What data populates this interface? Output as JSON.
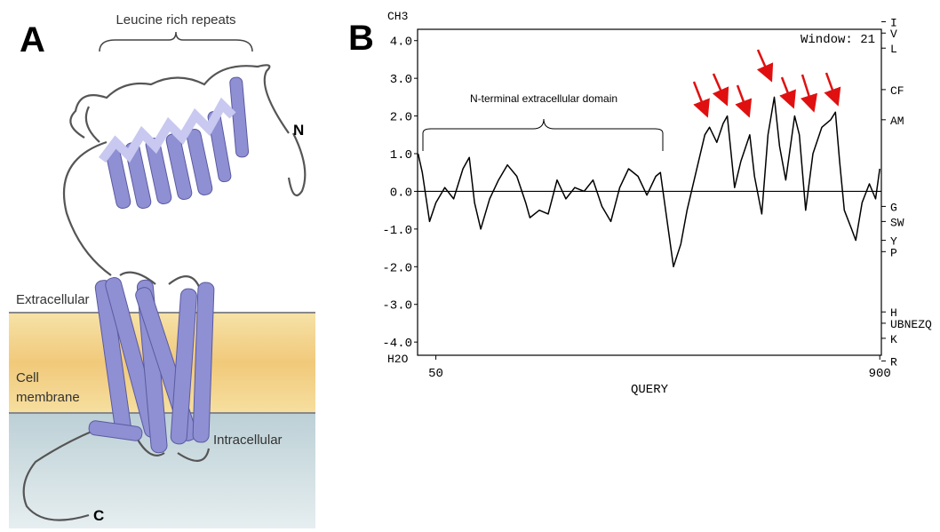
{
  "panel_a": {
    "label": "A",
    "repeats_label": "Leucine rich repeats",
    "n_terminus": "N",
    "c_terminus": "C",
    "extracellular": "Extracellular",
    "membrane": [
      "Cell",
      "membrane"
    ],
    "intracellular": "Intracellular"
  },
  "chart_data": {
    "type": "line",
    "panel_label": "B",
    "x_label": "QUERY",
    "y_top_label": "CH3",
    "y_bottom_label": "H2O",
    "window_label": "Window: 21",
    "domain_label": "N-terminal extracellular domain",
    "x": [
      16,
      24,
      38,
      50,
      67,
      84,
      102,
      114,
      124,
      136,
      153,
      170,
      187,
      205,
      222,
      230,
      248,
      265,
      282,
      299,
      316,
      334,
      351,
      368,
      385,
      402,
      419,
      437,
      454,
      471,
      480,
      488,
      497,
      505,
      519,
      531,
      548,
      565,
      574,
      588,
      600,
      608,
      622,
      634,
      651,
      660,
      674,
      686,
      698,
      708,
      720,
      737,
      746,
      758,
      772,
      789,
      806,
      815,
      823,
      832,
      846,
      854,
      866,
      880,
      892,
      900
    ],
    "series": [
      {
        "color": "#000000",
        "values": [
          1.0,
          0.5,
          -0.8,
          -0.3,
          0.1,
          -0.2,
          0.6,
          0.9,
          -0.3,
          -1.0,
          -0.2,
          0.3,
          0.7,
          0.4,
          -0.3,
          -0.7,
          -0.5,
          -0.6,
          0.3,
          -0.2,
          0.1,
          0.0,
          0.3,
          -0.4,
          -0.8,
          0.1,
          0.6,
          0.4,
          -0.1,
          0.4,
          0.5,
          -0.3,
          -1.2,
          -2.0,
          -1.4,
          -0.5,
          0.5,
          1.5,
          1.7,
          1.3,
          1.8,
          2.0,
          0.1,
          0.8,
          1.5,
          0.4,
          -0.6,
          1.5,
          2.5,
          1.2,
          0.3,
          2.0,
          1.5,
          -0.5,
          1.0,
          1.7,
          1.9,
          2.1,
          0.8,
          -0.5,
          -1.0,
          -1.3,
          -0.3,
          0.2,
          -0.2,
          0.6
        ]
      }
    ],
    "xlim": [
      15,
      903
    ],
    "xticks": [
      50,
      900
    ],
    "ylim": [
      -4.35,
      4.3
    ],
    "yticks": [
      {
        "value": 4,
        "label": "4.0"
      },
      {
        "value": 3,
        "label": "3.0"
      },
      {
        "value": 2,
        "label": "2.0"
      },
      {
        "value": 1,
        "label": "1.0"
      },
      {
        "value": 0,
        "label": "0.0"
      },
      {
        "value": -1,
        "label": "-1.0"
      },
      {
        "value": -2,
        "label": "-2.0"
      },
      {
        "value": -3,
        "label": "-3.0"
      },
      {
        "value": -4,
        "label": "-4.0"
      }
    ],
    "y2lim": [
      -4.35,
      4.3
    ],
    "y2ticks": [
      {
        "value": 4.5,
        "label": "I"
      },
      {
        "value": 4.2,
        "label": "V"
      },
      {
        "value": 3.8,
        "label": "L"
      },
      {
        "value": 2.7,
        "label": "CF"
      },
      {
        "value": 1.9,
        "label": "AM"
      },
      {
        "value": -0.4,
        "label": "G"
      },
      {
        "value": -0.8,
        "label": "SW"
      },
      {
        "value": -1.3,
        "label": "Y"
      },
      {
        "value": -1.6,
        "label": "P"
      },
      {
        "value": -3.2,
        "label": "H"
      },
      {
        "value": -3.5,
        "label": "UBNEZQ"
      },
      {
        "value": -3.9,
        "label": "K"
      },
      {
        "value": -4.5,
        "label": "R"
      }
    ],
    "zero_line": true
  }
}
